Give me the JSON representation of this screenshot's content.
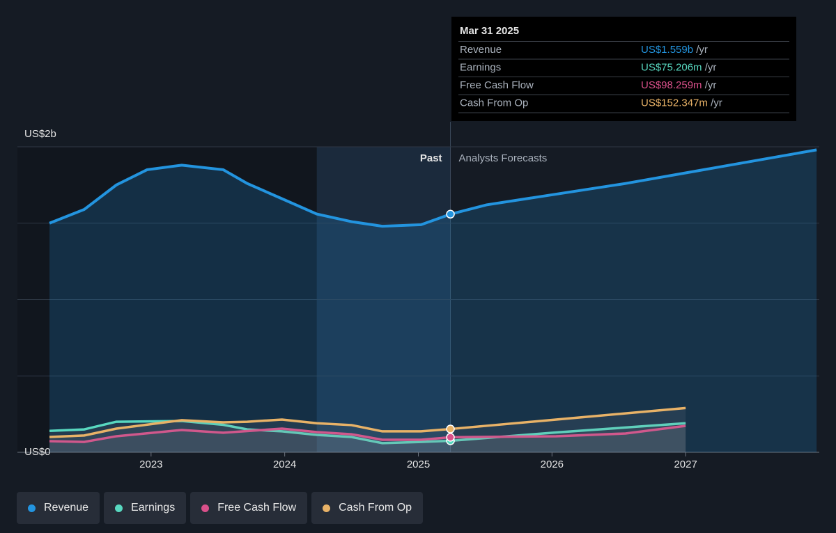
{
  "chart_data": {
    "type": "line",
    "xlim": [
      2022,
      2028
    ],
    "xticks": [
      2023,
      2024,
      2025,
      2026,
      2027
    ],
    "ylim": [
      0,
      2
    ],
    "yticks": [
      {
        "value": 0,
        "label": "US$0"
      },
      {
        "value": 2,
        "label": "US$2b"
      }
    ],
    "ygrid": [
      0,
      0.5,
      1,
      1.5,
      2
    ],
    "past_label": "Past",
    "forecast_label": "Analysts Forecasts",
    "series": [
      {
        "name": "Revenue",
        "color": "#2394df",
        "x": [
          2022.24,
          2022.5,
          2022.74,
          2022.97,
          2023.23,
          2023.54,
          2023.72,
          2023.98,
          2024.24,
          2024.5,
          2024.73,
          2025.02,
          2025.24,
          2025.51,
          2026.03,
          2026.55,
          2027.07,
          2027.59,
          2027.98
        ],
        "values": [
          1.5,
          1.59,
          1.75,
          1.85,
          1.88,
          1.85,
          1.76,
          1.66,
          1.56,
          1.51,
          1.48,
          1.49,
          1.559,
          1.62,
          1.69,
          1.76,
          1.84,
          1.92,
          1.98
        ]
      },
      {
        "name": "Earnings",
        "color": "#58d8c0",
        "x": [
          2022.24,
          2022.5,
          2022.74,
          2023.23,
          2023.54,
          2023.72,
          2023.98,
          2024.24,
          2024.5,
          2024.73,
          2025.02,
          2025.24,
          2026.03,
          2027.0
        ],
        "values": [
          0.14,
          0.15,
          0.2,
          0.205,
          0.18,
          0.15,
          0.137,
          0.114,
          0.1,
          0.06,
          0.068,
          0.075206,
          0.13,
          0.19
        ]
      },
      {
        "name": "Free Cash Flow",
        "color": "#d9508a",
        "x": [
          2022.24,
          2022.5,
          2022.74,
          2023.23,
          2023.54,
          2023.98,
          2024.24,
          2024.5,
          2024.73,
          2025.02,
          2025.24,
          2026.03,
          2026.55,
          2027.0
        ],
        "values": [
          0.073,
          0.068,
          0.105,
          0.146,
          0.128,
          0.155,
          0.132,
          0.118,
          0.082,
          0.082,
          0.098259,
          0.105,
          0.123,
          0.173
        ]
      },
      {
        "name": "Cash From Op",
        "color": "#e8b267",
        "x": [
          2022.24,
          2022.5,
          2022.74,
          2023.23,
          2023.54,
          2023.72,
          2023.98,
          2024.24,
          2024.5,
          2024.73,
          2025.02,
          2025.24,
          2026.03,
          2027.0
        ],
        "values": [
          0.1,
          0.11,
          0.155,
          0.21,
          0.196,
          0.2,
          0.214,
          0.19,
          0.178,
          0.137,
          0.137,
          0.152347,
          0.214,
          0.29
        ]
      }
    ],
    "tooltip": {
      "date": "Mar 31 2025",
      "unit": "/yr",
      "rows": [
        {
          "label": "Revenue",
          "value": 1.559,
          "value_label": "US$1.559b"
        },
        {
          "label": "Earnings",
          "value": 0.075206,
          "value_label": "US$75.206m"
        },
        {
          "label": "Free Cash Flow",
          "value": 0.098259,
          "value_label": "US$98.259m"
        },
        {
          "label": "Cash From Op",
          "value": 0.152347,
          "value_label": "US$152.347m"
        }
      ]
    }
  }
}
